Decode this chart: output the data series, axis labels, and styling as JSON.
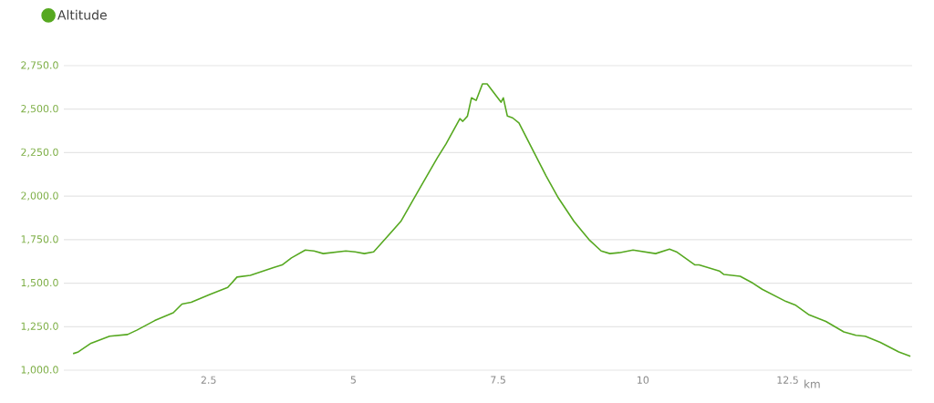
{
  "chart_data": {
    "type": "line",
    "xlabel": "km",
    "legend": "top left",
    "grid": "y",
    "marker": "none",
    "line_style": "solid",
    "xlim": [
      0,
      14.65
    ],
    "ylim": [
      1000,
      2750
    ],
    "xticks": [
      2.5,
      5,
      7.5,
      10,
      12.5
    ],
    "yticks": [
      {
        "value": 1000,
        "label": "1,000.0"
      },
      {
        "value": 1250,
        "label": "1,250.0"
      },
      {
        "value": 1500,
        "label": "1,500.0"
      },
      {
        "value": 1750,
        "label": "1,750.0"
      },
      {
        "value": 2000,
        "label": "2,000.0"
      },
      {
        "value": 2250,
        "label": "2,250.0"
      },
      {
        "value": 2500,
        "label": "2,500.0"
      },
      {
        "value": 2750,
        "label": "2,750.0"
      }
    ],
    "series": [
      {
        "name": "Altitude",
        "color": "#56a820",
        "x": [
          0.16,
          0.25,
          0.47,
          0.79,
          1.1,
          1.26,
          1.57,
          1.89,
          2.04,
          2.2,
          2.52,
          2.83,
          2.99,
          3.22,
          3.62,
          3.77,
          3.93,
          4.17,
          4.32,
          4.48,
          4.87,
          5.03,
          5.19,
          5.35,
          5.46,
          5.82,
          6.13,
          6.45,
          6.6,
          6.84,
          6.89,
          6.97,
          7.04,
          7.12,
          7.23,
          7.31,
          7.55,
          7.59,
          7.66,
          7.75,
          7.86,
          8.13,
          8.33,
          8.54,
          8.81,
          9.07,
          9.28,
          9.43,
          9.59,
          9.83,
          10.22,
          10.46,
          10.58,
          10.9,
          10.97,
          11.32,
          11.4,
          11.68,
          11.9,
          12.06,
          12.47,
          12.63,
          12.86,
          13.16,
          13.47,
          13.68,
          13.84,
          14.1,
          14.42,
          14.62
        ],
        "values": [
          1095,
          1105,
          1155,
          1195,
          1205,
          1230,
          1285,
          1330,
          1380,
          1390,
          1435,
          1475,
          1535,
          1545,
          1590,
          1605,
          1645,
          1690,
          1685,
          1670,
          1685,
          1680,
          1670,
          1680,
          1720,
          1855,
          2035,
          2220,
          2300,
          2445,
          2430,
          2460,
          2565,
          2550,
          2645,
          2645,
          2540,
          2565,
          2460,
          2450,
          2420,
          2245,
          2115,
          1990,
          1855,
          1750,
          1685,
          1670,
          1675,
          1690,
          1670,
          1695,
          1680,
          1605,
          1605,
          1570,
          1550,
          1540,
          1500,
          1465,
          1395,
          1375,
          1320,
          1280,
          1220,
          1200,
          1195,
          1160,
          1105,
          1080
        ]
      }
    ]
  }
}
